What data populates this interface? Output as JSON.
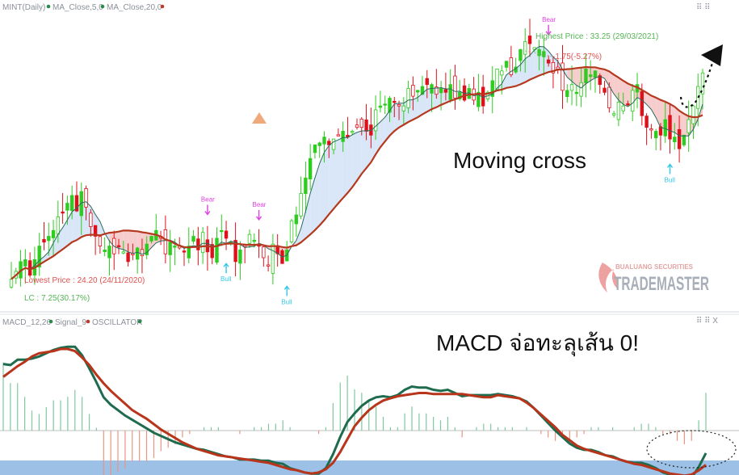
{
  "price_panel": {
    "legend": {
      "symbol": "MINT(Daily)",
      "ma_fast": "MA_Close,5,0",
      "ma_slow": "MA_Close,20,0"
    },
    "highest_label": "Highest Price : 33.25 (29/03/2021)",
    "change_label": "-1.75(-5.27%)",
    "lowest_label": "Lowest Price : 24.20 (24/11/2020)",
    "lc_label": "LC : 7.25(30.17%)",
    "signals": [
      {
        "label": "Bear",
        "kind": "bear",
        "index": 42
      },
      {
        "label": "Bear",
        "kind": "bear",
        "index": 53
      },
      {
        "label": "Bull",
        "kind": "bull",
        "index": 46
      },
      {
        "label": "Bull",
        "kind": "bull",
        "index": 59
      },
      {
        "label": "Bear",
        "kind": "bear",
        "index": 115
      },
      {
        "label": "Bull",
        "kind": "bull",
        "index": 141
      }
    ],
    "annotation": "Moving cross",
    "watermark_top": "BUALUANG SECURITIES",
    "watermark_main": "TRADEMASTER",
    "controls": "⠿ ⠿"
  },
  "macd_panel": {
    "legend": {
      "macd": "MACD_12,26",
      "signal": "Signal_9",
      "oscillator": "OSCILLATOR"
    },
    "annotation": "MACD จ่อทะลุเส้น 0!",
    "controls": "⠿ ⠿ X"
  },
  "colors": {
    "up": "#2ecc1f",
    "down": "#e0101a",
    "ma_fast": "#2a6a5e",
    "ma_slow": "#b5391f",
    "macd": "#1e6b4e",
    "signal": "#b8341a",
    "fill_bull": "#d8e6f8",
    "fill_bear": "#f7cccc",
    "bear_label": "#e040e0",
    "bull_label": "#33c7e6",
    "hist_pos": "#7fc9a0",
    "hist_neg": "#e9957f"
  },
  "chart_data": {
    "type": "candlestick",
    "close": [
      20.9,
      21.3,
      21.8,
      21.9,
      21.1,
      21.9,
      22.6,
      22.8,
      23.1,
      23.4,
      24.1,
      24.3,
      24.8,
      25.2,
      24.4,
      25.4,
      24.6,
      23.6,
      23.1,
      22.6,
      22.4,
      22.6,
      22.2,
      22.6,
      22.3,
      21.8,
      22.2,
      22.5,
      22.1,
      22.7,
      23.1,
      23.4,
      23.0,
      22.2,
      22.8,
      22.6,
      22.5,
      22.3,
      22.6,
      23.1,
      22.4,
      23.3,
      22.3,
      22.0,
      23.0,
      23.4,
      23.0,
      22.8,
      21.8,
      22.4,
      22.6,
      23.2,
      22.9,
      22.6,
      22.0,
      21.6,
      22.7,
      22.2,
      21.7,
      22.4,
      23.9,
      24.2,
      25.3,
      26.1,
      27.1,
      27.8,
      27.9,
      28.2,
      27.8,
      28.1,
      28.3,
      28.5,
      28.2,
      28.5,
      28.7,
      28.7,
      28.5,
      28.3,
      29.6,
      29.8,
      29.9,
      30.2,
      30.0,
      29.8,
      29.8,
      30.7,
      30.3,
      30.6,
      30.8,
      30.9,
      30.9,
      30.4,
      30.7,
      30.5,
      30.9,
      30.2,
      30.5,
      30.1,
      30.7,
      30.1,
      30.5,
      29.8,
      30.5,
      31.1,
      31.7,
      31.6,
      32.1,
      31.4,
      31.8,
      32.7,
      33.1,
      33.0,
      32.8,
      32.7,
      32.6,
      32.0,
      31.5,
      31.7,
      30.6,
      30.6,
      30.9,
      30.5,
      31.0,
      31.7,
      31.4,
      31.6,
      30.9,
      30.5,
      29.7,
      29.4,
      30.0,
      29.8,
      29.9,
      30.6,
      30.9,
      29.3,
      28.7,
      28.6,
      28.5,
      28.3,
      29.1,
      28.1,
      28.2,
      27.6,
      28.3,
      29.1,
      29.8,
      30.8,
      31.5
    ],
    "high_price": 33.25,
    "low_price": 24.2,
    "macd": [
      0.62,
      0.61,
      0.66,
      0.66,
      0.67,
      0.69,
      0.72,
      0.75,
      0.77,
      0.78,
      0.78,
      0.7,
      0.58,
      0.45,
      0.31,
      0.24,
      0.19,
      0.14,
      0.1,
      0.06,
      0.02,
      -0.02,
      -0.05,
      -0.08,
      -0.11,
      -0.13,
      -0.15,
      -0.17,
      -0.18,
      -0.2,
      -0.22,
      -0.24,
      -0.25,
      -0.27,
      -0.27,
      -0.27,
      -0.28,
      -0.28,
      -0.3,
      -0.31,
      -0.35,
      -0.37,
      -0.39,
      -0.4,
      -0.4,
      -0.35,
      -0.22,
      -0.06,
      0.08,
      0.16,
      0.23,
      0.28,
      0.31,
      0.32,
      0.31,
      0.33,
      0.38,
      0.41,
      0.4,
      0.4,
      0.38,
      0.37,
      0.38,
      0.35,
      0.32,
      0.33,
      0.33,
      0.33,
      0.33,
      0.34,
      0.33,
      0.32,
      0.3,
      0.27,
      0.21,
      0.14,
      0.07,
      0.0,
      -0.06,
      -0.12,
      -0.16,
      -0.18,
      -0.18,
      -0.2,
      -0.23,
      -0.24,
      -0.27,
      -0.29,
      -0.3,
      -0.3,
      -0.32,
      -0.35,
      -0.39,
      -0.41,
      -0.44,
      -0.46,
      -0.44,
      -0.34,
      -0.21
    ],
    "signal": [
      0.5,
      0.55,
      0.6,
      0.64,
      0.69,
      0.72,
      0.73,
      0.74,
      0.76,
      0.76,
      0.74,
      0.68,
      0.61,
      0.52,
      0.44,
      0.37,
      0.31,
      0.25,
      0.19,
      0.15,
      0.11,
      0.06,
      0.01,
      -0.03,
      -0.07,
      -0.11,
      -0.14,
      -0.17,
      -0.19,
      -0.21,
      -0.23,
      -0.24,
      -0.25,
      -0.26,
      -0.27,
      -0.28,
      -0.29,
      -0.3,
      -0.32,
      -0.34,
      -0.36,
      -0.37,
      -0.39,
      -0.4,
      -0.39,
      -0.36,
      -0.3,
      -0.2,
      -0.08,
      0.04,
      0.12,
      0.19,
      0.24,
      0.28,
      0.3,
      0.32,
      0.33,
      0.34,
      0.35,
      0.35,
      0.34,
      0.34,
      0.34,
      0.34,
      0.34,
      0.33,
      0.32,
      0.31,
      0.31,
      0.33,
      0.32,
      0.31,
      0.3,
      0.26,
      0.21,
      0.15,
      0.09,
      0.03,
      -0.04,
      -0.09,
      -0.14,
      -0.17,
      -0.19,
      -0.21,
      -0.23,
      -0.25,
      -0.27,
      -0.29,
      -0.31,
      -0.32,
      -0.34,
      -0.36,
      -0.38,
      -0.4,
      -0.41,
      -0.42,
      -0.41,
      -0.37,
      -0.32
    ],
    "zero_line": true
  }
}
